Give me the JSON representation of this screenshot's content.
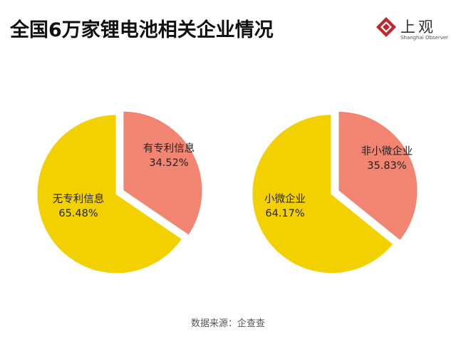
{
  "title": "全国6万家锂电池相关企业情况",
  "logo": {
    "cn": "上观",
    "en": "Shanghai Observer",
    "color": "#c0272d"
  },
  "source": "数据来源：企查查",
  "colors": {
    "yellow": "#f3d100",
    "salmon": "#f28472"
  },
  "chart_data": [
    {
      "type": "pie",
      "title": "",
      "slices": [
        {
          "label": "有专利信息",
          "value": 34.52,
          "value_label": "34.52%",
          "color": "#f28472"
        },
        {
          "label": "无专利信息",
          "value": 65.48,
          "value_label": "65.48%",
          "color": "#f3d100"
        }
      ]
    },
    {
      "type": "pie",
      "title": "",
      "slices": [
        {
          "label": "非小微企业",
          "value": 35.83,
          "value_label": "35.83%",
          "color": "#f28472"
        },
        {
          "label": "小微企业",
          "value": 64.17,
          "value_label": "64.17%",
          "color": "#f3d100"
        }
      ]
    }
  ]
}
